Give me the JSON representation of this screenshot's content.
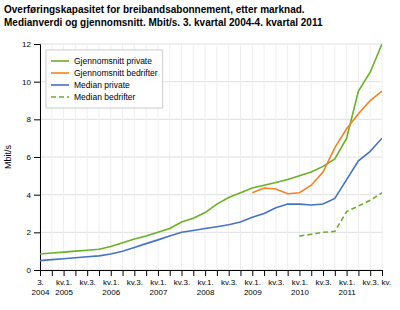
{
  "chart_data": {
    "type": "line",
    "title": "Overføringskapasitet for breibandsabonnement, etter marknad.",
    "subtitle": "Medianverdi og gjennomsnitt. Mbit/s. 3. kvartal 2004-4. kvartal 2011",
    "y_label": "Mbit/s",
    "categories": [
      "3.",
      null,
      "kv.1.",
      null,
      "kv.3.",
      null,
      "kv.1.",
      null,
      "kv.3.",
      null,
      "kv.1.",
      null,
      "kv.3.",
      null,
      "kv.1.",
      null,
      "kv.3.",
      null,
      "kv.1.",
      null,
      "kv.3.",
      null,
      "kv.1.",
      null,
      "kv.3.",
      null,
      "kv.1.",
      null,
      "kv.3.",
      "kv."
    ],
    "years": [
      "2004",
      null,
      "2005",
      null,
      null,
      null,
      "2006",
      null,
      null,
      null,
      "2007",
      null,
      null,
      null,
      "2008",
      null,
      null,
      null,
      "2009",
      null,
      null,
      null,
      "2010",
      null,
      null,
      null,
      "2011",
      null,
      null,
      null
    ],
    "series": [
      {
        "name": "Gjennomsnitt private",
        "color": "#6ab023",
        "line_style": "solid",
        "values": [
          0.85,
          0.9,
          0.95,
          1.0,
          1.05,
          1.1,
          1.25,
          1.45,
          1.65,
          1.8,
          2.0,
          2.2,
          2.55,
          2.75,
          3.05,
          3.5,
          3.85,
          4.1,
          4.35,
          4.5,
          4.65,
          4.8,
          5.0,
          5.2,
          5.5,
          5.9,
          7.0,
          9.5,
          10.5,
          12.0
        ]
      },
      {
        "name": "Gjennomsnitt bedrifter",
        "color": "#f5821f",
        "line_style": "solid",
        "values": [
          null,
          null,
          null,
          null,
          null,
          null,
          null,
          null,
          null,
          null,
          null,
          null,
          null,
          null,
          null,
          null,
          null,
          null,
          4.1,
          4.35,
          4.3,
          4.05,
          4.1,
          4.5,
          5.2,
          6.5,
          7.5,
          8.3,
          9.0,
          9.5
        ]
      },
      {
        "name": "Median private",
        "color": "#4472c4",
        "line_style": "solid",
        "values": [
          0.5,
          0.55,
          0.6,
          0.65,
          0.7,
          0.75,
          0.85,
          1.0,
          1.2,
          1.4,
          1.6,
          1.8,
          2.0,
          2.1,
          2.2,
          2.3,
          2.4,
          2.55,
          2.8,
          3.0,
          3.3,
          3.5,
          3.5,
          3.45,
          3.5,
          3.8,
          4.8,
          5.8,
          6.3,
          7.0
        ]
      },
      {
        "name": "Median bedrifter",
        "color": "#6ab023",
        "line_style": "dashed",
        "values": [
          null,
          null,
          null,
          null,
          null,
          null,
          null,
          null,
          null,
          null,
          null,
          null,
          null,
          null,
          null,
          null,
          null,
          null,
          null,
          null,
          null,
          null,
          1.8,
          1.9,
          2.0,
          2.05,
          3.1,
          3.4,
          3.7,
          4.1
        ]
      }
    ],
    "ylim": [
      0,
      12
    ],
    "yticks": [
      0,
      2,
      4,
      6,
      8,
      10,
      12
    ],
    "grid": true,
    "legend": "upper left"
  }
}
